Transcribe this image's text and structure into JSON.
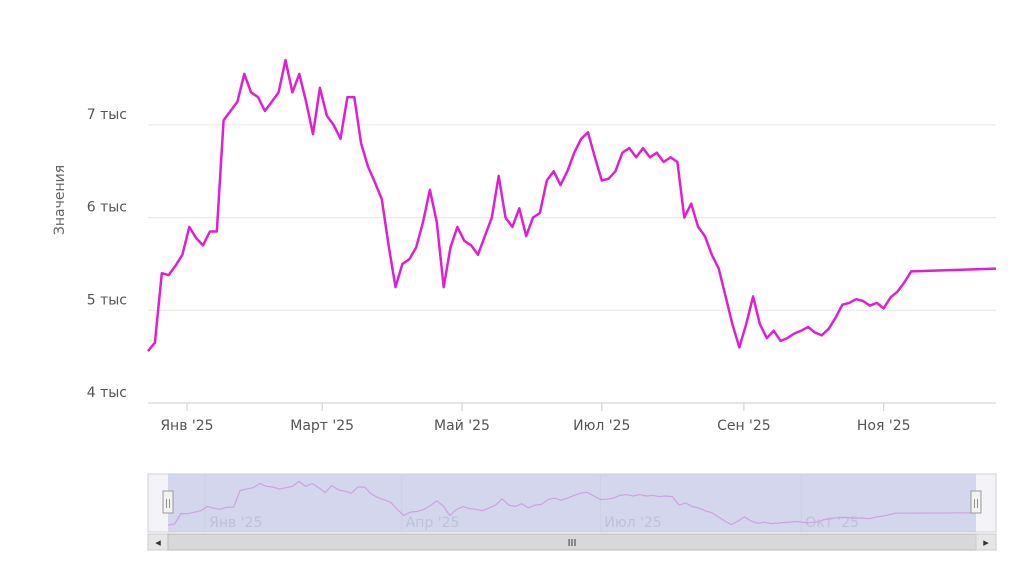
{
  "chart_data": {
    "type": "line",
    "title": "",
    "ylabel": "Значения",
    "xlabel": "",
    "grid": true,
    "ylim": [
      4000,
      7700
    ],
    "y_ticks": [
      {
        "value": 4000,
        "label": "4 тыс"
      },
      {
        "value": 5000,
        "label": "5 тыс"
      },
      {
        "value": 6000,
        "label": "6 тыс"
      },
      {
        "value": 7000,
        "label": "7 тыс"
      }
    ],
    "x_range": [
      "2024-12-15",
      "2025-12-20"
    ],
    "x_ticks": [
      {
        "date": "2025-01-01",
        "label": "Янв '25"
      },
      {
        "date": "2025-03-01",
        "label": "Март '25"
      },
      {
        "date": "2025-05-01",
        "label": "Май '25"
      },
      {
        "date": "2025-07-01",
        "label": "Июл '25"
      },
      {
        "date": "2025-09-01",
        "label": "Сен '25"
      },
      {
        "date": "2025-11-01",
        "label": "Ноя '25"
      }
    ],
    "series": [
      {
        "color": "#e020d0",
        "points": [
          [
            "2024-12-15",
            4560
          ],
          [
            "2024-12-18",
            4650
          ],
          [
            "2024-12-21",
            5400
          ],
          [
            "2024-12-24",
            5380
          ],
          [
            "2024-12-27",
            5480
          ],
          [
            "2024-12-30",
            5600
          ],
          [
            "2025-01-02",
            5900
          ],
          [
            "2025-01-05",
            5780
          ],
          [
            "2025-01-08",
            5700
          ],
          [
            "2025-01-11",
            5850
          ],
          [
            "2025-01-14",
            5850
          ],
          [
            "2025-01-17",
            7050
          ],
          [
            "2025-01-20",
            7150
          ],
          [
            "2025-01-23",
            7250
          ],
          [
            "2025-01-26",
            7550
          ],
          [
            "2025-01-29",
            7350
          ],
          [
            "2025-02-01",
            7300
          ],
          [
            "2025-02-04",
            7150
          ],
          [
            "2025-02-07",
            7250
          ],
          [
            "2025-02-10",
            7350
          ],
          [
            "2025-02-13",
            7700
          ],
          [
            "2025-02-16",
            7350
          ],
          [
            "2025-02-19",
            7550
          ],
          [
            "2025-02-22",
            7250
          ],
          [
            "2025-02-25",
            6900
          ],
          [
            "2025-02-28",
            7400
          ],
          [
            "2025-03-03",
            7100
          ],
          [
            "2025-03-06",
            7000
          ],
          [
            "2025-03-09",
            6850
          ],
          [
            "2025-03-12",
            7300
          ],
          [
            "2025-03-15",
            7300
          ],
          [
            "2025-03-18",
            6800
          ],
          [
            "2025-03-21",
            6550
          ],
          [
            "2025-03-24",
            6380
          ],
          [
            "2025-03-27",
            6200
          ],
          [
            "2025-03-30",
            5700
          ],
          [
            "2025-04-02",
            5250
          ],
          [
            "2025-04-05",
            5500
          ],
          [
            "2025-04-08",
            5550
          ],
          [
            "2025-04-11",
            5680
          ],
          [
            "2025-04-14",
            5950
          ],
          [
            "2025-04-17",
            6300
          ],
          [
            "2025-04-20",
            5950
          ],
          [
            "2025-04-23",
            5250
          ],
          [
            "2025-04-26",
            5680
          ],
          [
            "2025-04-29",
            5900
          ],
          [
            "2025-05-02",
            5750
          ],
          [
            "2025-05-05",
            5700
          ],
          [
            "2025-05-08",
            5600
          ],
          [
            "2025-05-11",
            5800
          ],
          [
            "2025-05-14",
            6000
          ],
          [
            "2025-05-17",
            6450
          ],
          [
            "2025-05-20",
            6000
          ],
          [
            "2025-05-23",
            5900
          ],
          [
            "2025-05-26",
            6100
          ],
          [
            "2025-05-29",
            5800
          ],
          [
            "2025-06-01",
            6000
          ],
          [
            "2025-06-04",
            6050
          ],
          [
            "2025-06-07",
            6400
          ],
          [
            "2025-06-10",
            6500
          ],
          [
            "2025-06-13",
            6350
          ],
          [
            "2025-06-16",
            6500
          ],
          [
            "2025-06-19",
            6700
          ],
          [
            "2025-06-22",
            6850
          ],
          [
            "2025-06-25",
            6920
          ],
          [
            "2025-06-28",
            6650
          ],
          [
            "2025-07-01",
            6400
          ],
          [
            "2025-07-04",
            6420
          ],
          [
            "2025-07-07",
            6500
          ],
          [
            "2025-07-10",
            6700
          ],
          [
            "2025-07-13",
            6750
          ],
          [
            "2025-07-16",
            6650
          ],
          [
            "2025-07-19",
            6750
          ],
          [
            "2025-07-22",
            6650
          ],
          [
            "2025-07-25",
            6700
          ],
          [
            "2025-07-28",
            6600
          ],
          [
            "2025-07-31",
            6650
          ],
          [
            "2025-08-03",
            6600
          ],
          [
            "2025-08-06",
            6000
          ],
          [
            "2025-08-09",
            6150
          ],
          [
            "2025-08-12",
            5900
          ],
          [
            "2025-08-15",
            5800
          ],
          [
            "2025-08-18",
            5600
          ],
          [
            "2025-08-21",
            5450
          ],
          [
            "2025-08-24",
            5150
          ],
          [
            "2025-08-27",
            4850
          ],
          [
            "2025-08-30",
            4600
          ],
          [
            "2025-09-02",
            4850
          ],
          [
            "2025-09-05",
            5150
          ],
          [
            "2025-09-08",
            4850
          ],
          [
            "2025-09-11",
            4700
          ],
          [
            "2025-09-14",
            4780
          ],
          [
            "2025-09-17",
            4670
          ],
          [
            "2025-09-20",
            4700
          ],
          [
            "2025-09-23",
            4750
          ],
          [
            "2025-09-26",
            4780
          ],
          [
            "2025-09-29",
            4820
          ],
          [
            "2025-10-02",
            4760
          ],
          [
            "2025-10-05",
            4730
          ],
          [
            "2025-10-08",
            4800
          ],
          [
            "2025-10-11",
            4920
          ],
          [
            "2025-10-14",
            5060
          ],
          [
            "2025-10-17",
            5080
          ],
          [
            "2025-10-20",
            5120
          ],
          [
            "2025-10-23",
            5100
          ],
          [
            "2025-10-26",
            5050
          ],
          [
            "2025-10-29",
            5080
          ],
          [
            "2025-11-01",
            5020
          ],
          [
            "2025-11-04",
            5140
          ],
          [
            "2025-11-07",
            5200
          ],
          [
            "2025-11-10",
            5300
          ],
          [
            "2025-11-13",
            5420
          ],
          [
            "2025-12-20",
            5450
          ]
        ]
      }
    ]
  },
  "navigator": {
    "x_ticks": [
      {
        "date": "2025-01-01",
        "label": "Янв '25"
      },
      {
        "date": "2025-04-01",
        "label": "Апр '25"
      },
      {
        "date": "2025-07-01",
        "label": "Июл '25"
      },
      {
        "date": "2025-10-01",
        "label": "Окт '25"
      }
    ],
    "range_start": "2024-12-15",
    "range_end": "2025-12-20",
    "scrollbar_label": "III",
    "left_arrow": "◂",
    "right_arrow": "▸",
    "handle_glyph": "||"
  },
  "colors": {
    "series": "#e020d0",
    "grid": "#e6e6e6",
    "navigator_mask": "#c8cce8",
    "scrollbar": "#d8d8d8"
  }
}
